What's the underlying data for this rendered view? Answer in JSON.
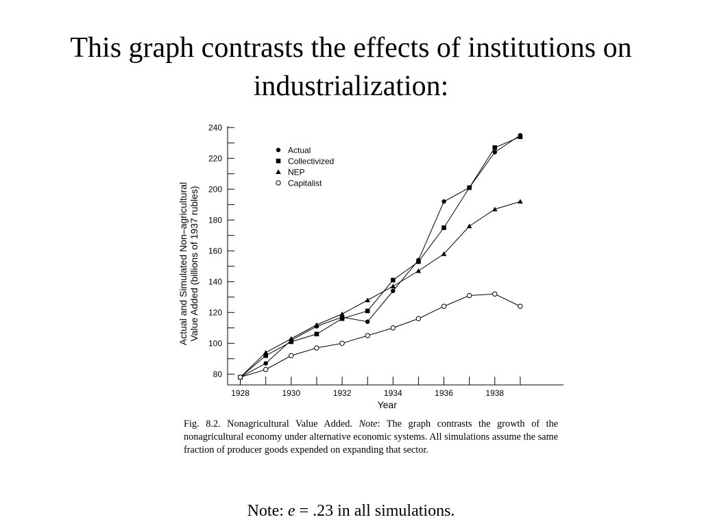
{
  "slide": {
    "title_line1": "This graph contrasts the effects of institutions on",
    "title_line2": "industrialization:",
    "note_prefix": "Note: ",
    "note_var": "e",
    "note_suffix": " = .23 in all simulations."
  },
  "figure": {
    "caption_label": "Fig. 8.2. Nonagricultural Value Added. ",
    "caption_note": "Note",
    "caption_text": ": The graph contrasts the growth of the nonagricultural economy under alternative economic systems. All simulations assume the same fraction of producer goods expended on expanding that sector."
  },
  "chart_data": {
    "type": "line",
    "title": "",
    "xlabel": "Year",
    "ylabel_line1": "Actual and Simulated Non–agricultural",
    "ylabel_line2": "Value Added (billions of 1937 rubles)",
    "xlim": [
      1927.5,
      1940.7
    ],
    "ylim": [
      73,
      241
    ],
    "x_ticks": [
      1928,
      1930,
      1932,
      1934,
      1936,
      1938
    ],
    "x_tick_labels": [
      "1928",
      "1930",
      "1932",
      "1934",
      "1936",
      "1938"
    ],
    "y_ticks": [
      80,
      100,
      120,
      140,
      160,
      180,
      200,
      220,
      240
    ],
    "y_tick_labels": [
      "80",
      "100",
      "120",
      "140",
      "160",
      "180",
      "200",
      "220",
      "240"
    ],
    "grid": false,
    "legend_position": "top-left",
    "series": [
      {
        "name": "Actual",
        "marker": "filled-circle",
        "x": [
          1928,
          1929,
          1930,
          1931,
          1932,
          1933,
          1934,
          1935,
          1936,
          1937,
          1938,
          1939
        ],
        "y": [
          78,
          87,
          102,
          111,
          117,
          114,
          134,
          154,
          192,
          201,
          224,
          235
        ]
      },
      {
        "name": "Collectivized",
        "marker": "filled-square",
        "x": [
          1928,
          1929,
          1930,
          1931,
          1932,
          1933,
          1934,
          1935,
          1936,
          1937,
          1938,
          1939
        ],
        "y": [
          78,
          92,
          101,
          106,
          116,
          121,
          141,
          153,
          175,
          201,
          227,
          234
        ]
      },
      {
        "name": "NEP",
        "marker": "filled-triangle",
        "x": [
          1928,
          1929,
          1930,
          1931,
          1932,
          1933,
          1934,
          1935,
          1936,
          1937,
          1938,
          1939
        ],
        "y": [
          78,
          94,
          103,
          112,
          119,
          128,
          137,
          147,
          158,
          176,
          187,
          192
        ]
      },
      {
        "name": "Capitalist",
        "marker": "open-circle",
        "x": [
          1928,
          1929,
          1930,
          1931,
          1932,
          1933,
          1934,
          1935,
          1936,
          1937,
          1938,
          1939
        ],
        "y": [
          78,
          83,
          92,
          97,
          100,
          105,
          110,
          116,
          124,
          131,
          132,
          124
        ]
      }
    ]
  }
}
